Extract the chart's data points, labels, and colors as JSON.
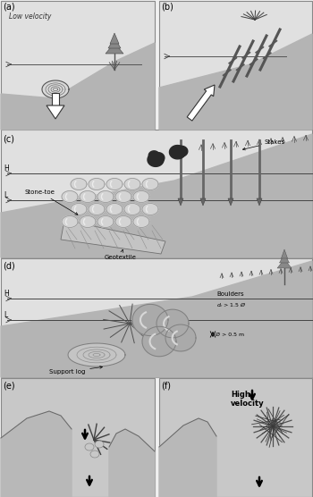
{
  "bg_color": "#f0f0f0",
  "panel_bg": "#e0e0e0",
  "ground_color": "#b4b4b4",
  "panel_edge": "#888888",
  "dark": "#404040",
  "black": "#000000",
  "panel_labels": [
    "(a)",
    "(b)",
    "(c)",
    "(d)",
    "(e)",
    "(f)"
  ]
}
